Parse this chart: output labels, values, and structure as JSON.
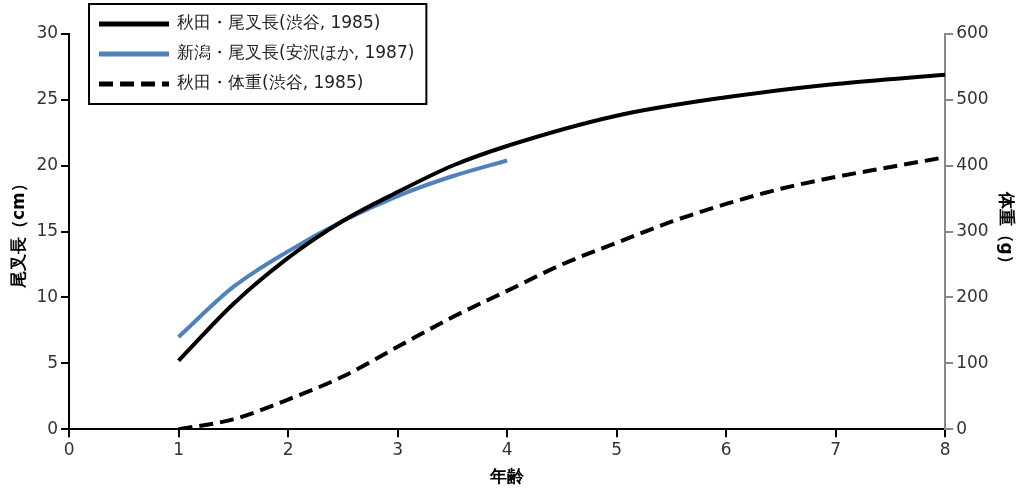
{
  "chart_data": {
    "type": "line",
    "xlabel": "年齢",
    "ylabel": "尾叉長（cm）",
    "y2label": "体重（g）",
    "xlim": [
      0,
      8
    ],
    "xticks": [
      0,
      1,
      2,
      3,
      4,
      5,
      6,
      7,
      8
    ],
    "ylim": [
      0,
      30
    ],
    "yticks": [
      0,
      5,
      10,
      15,
      20,
      25,
      30
    ],
    "y2lim": [
      0,
      600
    ],
    "y2ticks": [
      0,
      100,
      200,
      300,
      400,
      500,
      600
    ],
    "grid": false,
    "legend": "top left",
    "marker": "none",
    "series": [
      {
        "name": "秋田・尾叉長(渋谷, 1985)",
        "color": "#000000",
        "x": [
          1,
          1.5,
          2,
          2.5,
          3,
          3.5,
          4,
          5,
          6,
          7,
          8
        ],
        "values": [
          5.2,
          9.5,
          13,
          15.8,
          18,
          20,
          21.5,
          23.8,
          25.2,
          26.2,
          26.9
        ]
      },
      {
        "name": "新潟・尾叉長(安沢ほか, 1987)",
        "color": "#4f81bd",
        "x": [
          1,
          1.5,
          2,
          2.5,
          3,
          3.5,
          4
        ],
        "values": [
          7,
          10.8,
          13.5,
          15.8,
          17.7,
          19.2,
          20.4
        ]
      },
      {
        "name": "秋田・体重(渋谷, 1985)",
        "color": "#000000",
        "axis": "y2",
        "line_style": "dashed",
        "x": [
          1,
          1.5,
          2,
          2.5,
          3,
          3.5,
          4,
          4.5,
          5,
          5.5,
          6,
          6.5,
          7,
          7.5,
          8
        ],
        "values": [
          0,
          15,
          45,
          80,
          125,
          170,
          210,
          250,
          283,
          315,
          342,
          365,
          383,
          398,
          413
        ]
      }
    ]
  }
}
